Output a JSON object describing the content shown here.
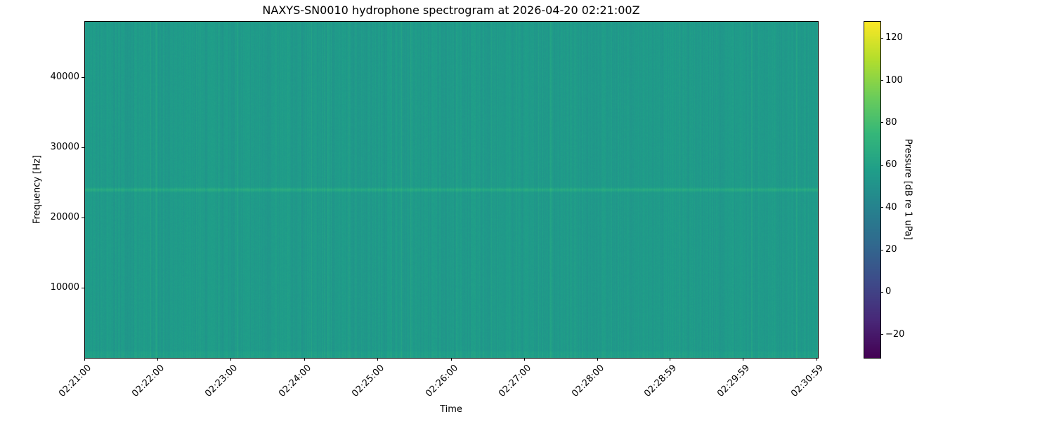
{
  "chart_data": {
    "type": "heatmap",
    "title": "NAXYS-SN0010 hydrophone spectrogram at 2026-04-20 02:21:00Z",
    "xlabel": "Time",
    "ylabel": "Frequency [Hz]",
    "colorbar_label": "Pressure [dB re 1 uPa]",
    "colormap": "viridis",
    "xlim": [
      "02:21:00",
      "02:31:00"
    ],
    "x_ticks": [
      "02:21:00",
      "02:22:00",
      "02:23:00",
      "02:24:00",
      "02:25:00",
      "02:26:00",
      "02:27:00",
      "02:28:00",
      "02:28:59",
      "02:29:59",
      "02:30:59"
    ],
    "x_tick_seconds": [
      0,
      60,
      120,
      180,
      240,
      300,
      360,
      420,
      479,
      539,
      599
    ],
    "ylim": [
      0,
      48000
    ],
    "y_ticks": [
      10000,
      20000,
      30000,
      40000
    ],
    "y_tick_labels": [
      "10000",
      "20000",
      "30000",
      "40000"
    ],
    "clim": [
      -31,
      128
    ],
    "c_ticks": [
      -20,
      0,
      20,
      40,
      60,
      80,
      100,
      120
    ],
    "c_tick_labels": [
      "−20",
      "0",
      "20",
      "40",
      "60",
      "80",
      "100",
      "120"
    ],
    "background_level_db": 55,
    "tonal_line": {
      "frequency_hz": 24000,
      "level_db": 66
    },
    "grid": false
  }
}
